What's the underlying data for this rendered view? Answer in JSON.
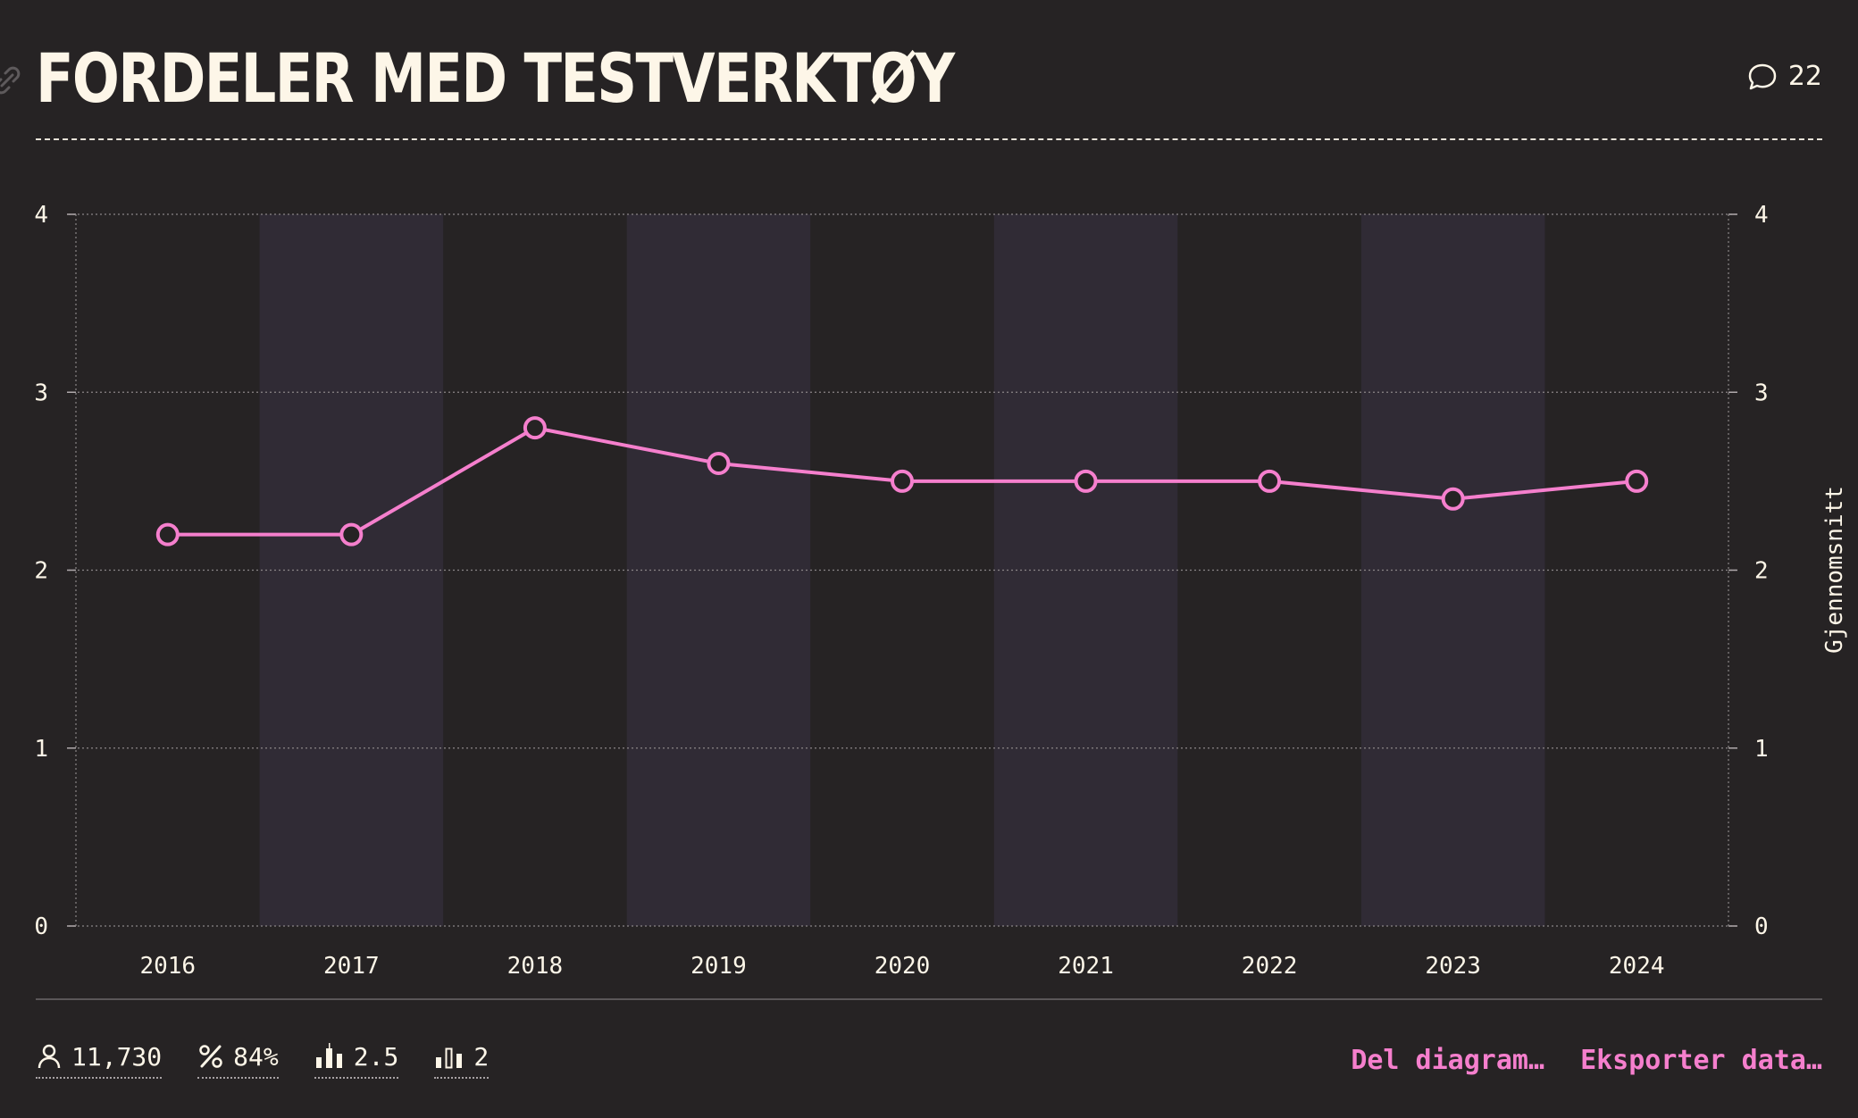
{
  "header": {
    "title": "FORDELER MED TESTVERKTØY",
    "comment_count": "22"
  },
  "chart_data": {
    "type": "line",
    "title": "FORDELER MED TESTVERKTØY",
    "x": [
      "2016",
      "2017",
      "2018",
      "2019",
      "2020",
      "2021",
      "2022",
      "2023",
      "2024"
    ],
    "series": [
      {
        "values": [
          2.2,
          2.2,
          2.8,
          2.6,
          2.5,
          2.5,
          2.5,
          2.4,
          2.5
        ]
      }
    ],
    "ylabel": "Gjennomsnitt",
    "ylim": [
      0,
      4
    ],
    "yticks": [
      "0",
      "1",
      "2",
      "3",
      "4"
    ],
    "grid": true,
    "alternating_column_shading": true,
    "line_color": "#f57fcd"
  },
  "footer": {
    "stats": [
      {
        "icon": "person-icon",
        "value": "11,730"
      },
      {
        "icon": "percent-icon",
        "value": "84%"
      },
      {
        "icon": "bar-chart-icon",
        "value": "2.5"
      },
      {
        "icon": "bar-chart-outline-icon",
        "value": "2"
      }
    ],
    "share_label": "Del diagram…",
    "export_label": "Eksporter data…"
  },
  "colors": {
    "background": "#262324",
    "band": "#302b35",
    "accent": "#f57fcd",
    "text": "#fdf6e8"
  }
}
